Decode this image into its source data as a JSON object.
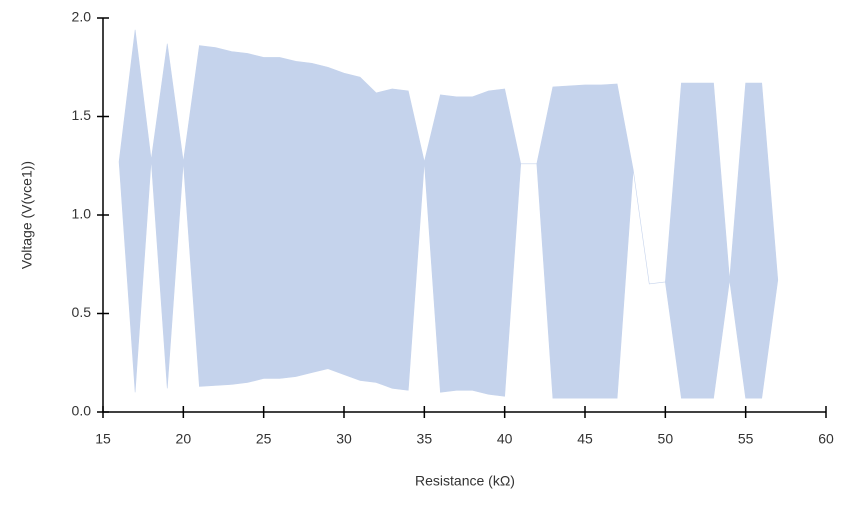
{
  "chart_data": {
    "type": "range_area",
    "x_label": "Resistance (kΩ)",
    "y_label": "Voltage (V(vce1))",
    "x": [
      16,
      17,
      18,
      19,
      20,
      21,
      22,
      23,
      24,
      25,
      26,
      27,
      28,
      29,
      30,
      31,
      32,
      33,
      34,
      35,
      36,
      37,
      38,
      39,
      40,
      41,
      42,
      43,
      44,
      45,
      46,
      47,
      48,
      49,
      50,
      51,
      52,
      53,
      54,
      55,
      56,
      57
    ],
    "upper": [
      1.27,
      1.94,
      1.28,
      1.87,
      1.27,
      1.86,
      1.85,
      1.83,
      1.82,
      1.8,
      1.8,
      1.78,
      1.77,
      1.75,
      1.72,
      1.7,
      1.62,
      1.64,
      1.63,
      1.27,
      1.61,
      1.6,
      1.6,
      1.63,
      1.64,
      1.26,
      1.26,
      1.65,
      1.655,
      1.66,
      1.66,
      1.665,
      1.23,
      0.65,
      0.66,
      1.67,
      1.67,
      1.67,
      0.67,
      1.67,
      1.67,
      0.67
    ],
    "lower": [
      1.27,
      0.1,
      1.28,
      0.12,
      1.27,
      0.13,
      0.135,
      0.14,
      0.15,
      0.17,
      0.17,
      0.18,
      0.2,
      0.22,
      0.19,
      0.16,
      0.15,
      0.12,
      0.11,
      1.27,
      0.1,
      0.11,
      0.11,
      0.09,
      0.08,
      1.26,
      1.26,
      0.07,
      0.07,
      0.07,
      0.07,
      0.07,
      1.23,
      0.65,
      0.66,
      0.07,
      0.07,
      0.07,
      0.67,
      0.07,
      0.07,
      0.67
    ],
    "color": "#c5d3ec",
    "xlim": [
      15,
      60
    ],
    "xticks": [
      15,
      20,
      25,
      30,
      35,
      40,
      45,
      50,
      55,
      60
    ],
    "ylim": [
      0,
      2
    ],
    "yticks": [
      {
        "value": 0,
        "label": "0.0"
      },
      0.5,
      {
        "value": 1,
        "label": "1.0"
      },
      1.5,
      {
        "value": 2,
        "label": "2.0"
      }
    ]
  }
}
